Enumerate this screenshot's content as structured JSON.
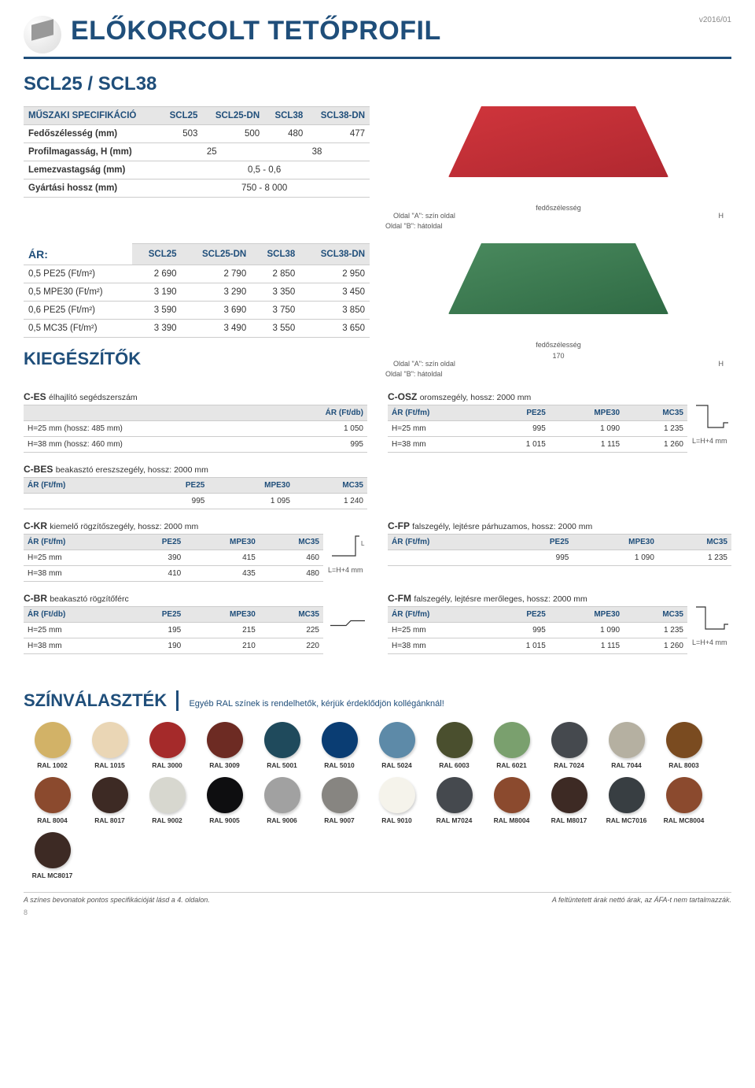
{
  "header": {
    "title": "ELŐKORCOLT TETŐPROFIL",
    "version": "v2016/01"
  },
  "subtitle": "SCL25 / SCL38",
  "spec": {
    "title": "MŰSZAKI SPECIFIKÁCIÓ",
    "cols": [
      "SCL25",
      "SCL25-DN",
      "SCL38",
      "SCL38-DN"
    ],
    "rows": [
      {
        "label": "Fedőszélesség (mm)",
        "v": [
          "503",
          "500",
          "480",
          "477"
        ]
      },
      {
        "label": "Profilmagasság, H (mm)",
        "v": [
          "25",
          "38"
        ],
        "span": 2
      },
      {
        "label": "Lemezvastagság (mm)",
        "v": [
          "0,5 - 0,6"
        ],
        "span": 4
      },
      {
        "label": "Gyártási hossz (mm)",
        "v": [
          "750 - 8 000"
        ],
        "span": 4
      }
    ],
    "diagram1": {
      "label_top": "fedőszélesség",
      "side_a": "Oldal \"A\": szín oldal",
      "side_b": "Oldal \"B\": hátoldal",
      "h": "H"
    },
    "diagram2": {
      "label_top": "fedőszélesség",
      "mid": "170",
      "side_a": "Oldal \"A\": szín oldal",
      "side_b": "Oldal \"B\": hátoldal",
      "h": "H"
    }
  },
  "price": {
    "title": "ÁR:",
    "cols": [
      "SCL25",
      "SCL25-DN",
      "SCL38",
      "SCL38-DN"
    ],
    "rows": [
      {
        "label": "0,5 PE25 (Ft/m²)",
        "v": [
          "2 690",
          "2 790",
          "2 850",
          "2 950"
        ]
      },
      {
        "label": "0,5 MPE30 (Ft/m²)",
        "v": [
          "3 190",
          "3 290",
          "3 350",
          "3 450"
        ]
      },
      {
        "label": "0,6 PE25 (Ft/m²)",
        "v": [
          "3 590",
          "3 690",
          "3 750",
          "3 850"
        ]
      },
      {
        "label": "0,5 MC35 (Ft/m²)",
        "v": [
          "3 390",
          "3 490",
          "3 550",
          "3 650"
        ]
      }
    ]
  },
  "acc_title": "KIEGÉSZÍTŐK",
  "c_es": {
    "title": "C-ES",
    "desc": "élhajlító segédszerszám",
    "unit": "ÁR (Ft/db)",
    "rows": [
      {
        "l": "H=25 mm (hossz: 485 mm)",
        "v": "1 050"
      },
      {
        "l": "H=38 mm (hossz: 460 mm)",
        "v": "995"
      }
    ]
  },
  "c_osz": {
    "title": "C-OSZ",
    "desc": "oromszegély, hossz: 2000 mm",
    "cols": [
      "ÁR (Ft/fm)",
      "PE25",
      "MPE30",
      "MC35"
    ],
    "rows": [
      {
        "l": "H=25 mm",
        "v": [
          "995",
          "1 090",
          "1 235"
        ]
      },
      {
        "l": "H=38 mm",
        "v": [
          "1 015",
          "1 115",
          "1 260"
        ]
      }
    ],
    "note": "L=H+4 mm"
  },
  "c_bes": {
    "title": "C-BES",
    "desc": "beakasztó ereszszegély, hossz: 2000 mm",
    "cols": [
      "ÁR (Ft/fm)",
      "PE25",
      "MPE30",
      "MC35"
    ],
    "rows": [
      {
        "l": "",
        "v": [
          "995",
          "1 095",
          "1 240"
        ]
      }
    ]
  },
  "c_kr": {
    "title": "C-KR",
    "desc": "kiemelő rögzítőszegély, hossz: 2000 mm",
    "cols": [
      "ÁR (Ft/fm)",
      "PE25",
      "MPE30",
      "MC35"
    ],
    "rows": [
      {
        "l": "H=25 mm",
        "v": [
          "390",
          "415",
          "460"
        ]
      },
      {
        "l": "H=38 mm",
        "v": [
          "410",
          "435",
          "480"
        ]
      }
    ],
    "note": "L=H+4 mm",
    "dim": "L"
  },
  "c_fp": {
    "title": "C-FP",
    "desc": "falszegély, lejtésre párhuzamos, hossz: 2000 mm",
    "cols": [
      "ÁR (Ft/fm)",
      "PE25",
      "MPE30",
      "MC35"
    ],
    "rows": [
      {
        "l": "",
        "v": [
          "995",
          "1 090",
          "1 235"
        ]
      }
    ]
  },
  "c_br": {
    "title": "C-BR",
    "desc": "beakasztó rögzítőférc",
    "cols": [
      "ÁR (Ft/db)",
      "PE25",
      "MPE30",
      "MC35"
    ],
    "rows": [
      {
        "l": "H=25 mm",
        "v": [
          "195",
          "215",
          "225"
        ]
      },
      {
        "l": "H=38 mm",
        "v": [
          "190",
          "210",
          "220"
        ]
      }
    ]
  },
  "c_fm": {
    "title": "C-FM",
    "desc": "falszegély, lejtésre merőleges, hossz: 2000 mm",
    "cols": [
      "ÁR (Ft/fm)",
      "PE25",
      "MPE30",
      "MC35"
    ],
    "rows": [
      {
        "l": "H=25 mm",
        "v": [
          "995",
          "1 090",
          "1 235"
        ]
      },
      {
        "l": "H=38 mm",
        "v": [
          "1 015",
          "1 115",
          "1 260"
        ]
      }
    ],
    "note": "L=H+4 mm"
  },
  "colors": {
    "title": "SZÍNVÁLASZTÉK",
    "note": "Egyéb RAL színek is rendelhetők,\nkérjük érdeklődjön kollégánknál!",
    "items": [
      {
        "l": "RAL 1002",
        "c": "#d2b267"
      },
      {
        "l": "RAL 1015",
        "c": "#ead6b5"
      },
      {
        "l": "RAL 3000",
        "c": "#a52a2a"
      },
      {
        "l": "RAL 3009",
        "c": "#6d2b23"
      },
      {
        "l": "RAL 5001",
        "c": "#1f4a5c"
      },
      {
        "l": "RAL 5010",
        "c": "#0a3d73"
      },
      {
        "l": "RAL 5024",
        "c": "#5d8aa8"
      },
      {
        "l": "RAL 6003",
        "c": "#4a4f2e"
      },
      {
        "l": "RAL 6021",
        "c": "#7aa06e"
      },
      {
        "l": "RAL 7024",
        "c": "#45494e"
      },
      {
        "l": "RAL 7044",
        "c": "#b5b0a1"
      },
      {
        "l": "RAL 8003",
        "c": "#7a4b20"
      },
      {
        "l": "RAL 8004",
        "c": "#8b4a2e"
      },
      {
        "l": "RAL 8017",
        "c": "#3d2a24"
      },
      {
        "l": "RAL 9002",
        "c": "#d7d7cf"
      },
      {
        "l": "RAL 9005",
        "c": "#0e0e10"
      },
      {
        "l": "RAL 9006",
        "c": "#a1a1a1"
      },
      {
        "l": "RAL 9007",
        "c": "#878581"
      },
      {
        "l": "RAL 9010",
        "c": "#f5f3eb"
      },
      {
        "l": "RAL M7024",
        "c": "#45494e"
      },
      {
        "l": "RAL M8004",
        "c": "#8b4a2e"
      },
      {
        "l": "RAL M8017",
        "c": "#3d2a24"
      },
      {
        "l": "RAL MC7016",
        "c": "#383e42"
      },
      {
        "l": "RAL MC8004",
        "c": "#8b4a2e"
      },
      {
        "l": "RAL MC8017",
        "c": "#3d2a24"
      }
    ]
  },
  "footnote_l": "A színes bevonatok pontos specifikációját lásd a 4. oldalon.",
  "footnote_r": "A feltüntetett árak nettó árak, az ÁFA-t nem tartalmazzák.",
  "page": "8"
}
